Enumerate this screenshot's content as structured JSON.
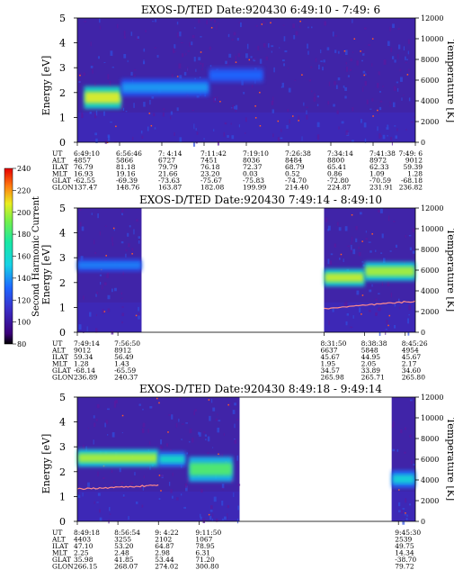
{
  "colorbar": {
    "label": "Second Harmonic Current",
    "ticks": [
      "80",
      "100",
      "120",
      "140",
      "160",
      "180",
      "200",
      "220",
      "240"
    ]
  },
  "chart_data": [
    {
      "type": "heatmap",
      "title": "EXOS-D/TED   Date:920430  6:49:10 - 7:49: 6",
      "ylabel": "Energy [eV]",
      "y2label": "Temperature [K]",
      "ylim": [
        0,
        5
      ],
      "y2lim": [
        0,
        12000
      ],
      "yticks": [
        "0",
        "1",
        "2",
        "3",
        "4",
        "5"
      ],
      "y2ticks": [
        "0",
        "2000",
        "4000",
        "6000",
        "8000",
        "10000",
        "12000"
      ],
      "row_labels": [
        "UT",
        "ALT",
        "ILAT",
        "MLT",
        "GLAT",
        "GLON"
      ],
      "columns": [
        [
          "6:49:10",
          "4857",
          "76.79",
          "16.93",
          "-62.55",
          "137.47"
        ],
        [
          "6:56:46",
          "5866",
          "81.18",
          "19.16",
          "-69.39",
          "148.76"
        ],
        [
          "7: 4:14",
          "6727",
          "79.79",
          "21.66",
          "-73.63",
          "163.87"
        ],
        [
          "7:11:42",
          "7451",
          "76.18",
          "23.20",
          "-75.67",
          "182.08"
        ],
        [
          "7:19:10",
          "8036",
          "72.37",
          "0.03",
          "-75.83",
          "199.99"
        ],
        [
          "7:26:38",
          "8484",
          "68.79",
          "0.52",
          "-74.70",
          "214.40"
        ],
        [
          "7:34:14",
          "8800",
          "65.41",
          "0.86",
          "-72.80",
          "224.87"
        ],
        [
          "7:41:38",
          "8972",
          "62.33",
          "1.09",
          "-70.59",
          "231.91"
        ],
        [
          "7:49: 6",
          "9012",
          "59.39",
          "1.28",
          "-68.18",
          "236.82"
        ]
      ],
      "data_spans": [
        [
          0,
          1
        ]
      ],
      "bands": [
        {
          "start": 0.02,
          "end": 0.13,
          "center_eV": 1.8,
          "width_eV": 0.9,
          "level": 1.0
        },
        {
          "start": 0.13,
          "end": 0.39,
          "center_eV": 2.2,
          "width_eV": 0.7,
          "level": 0.35
        },
        {
          "start": 0.39,
          "end": 0.55,
          "center_eV": 2.7,
          "width_eV": 0.6,
          "level": 0.25
        }
      ]
    },
    {
      "type": "heatmap",
      "title": "EXOS-D/TED   Date:920430  7:49:14 - 8:49:10",
      "ylabel": "Energy [eV]",
      "y2label": "Temperature [K]",
      "ylim": [
        0,
        5
      ],
      "y2lim": [
        0,
        12000
      ],
      "yticks": [
        "0",
        "1",
        "2",
        "3",
        "4",
        "5"
      ],
      "y2ticks": [
        "0",
        "2000",
        "4000",
        "6000",
        "8000",
        "10000",
        "12000"
      ],
      "row_labels": [
        "UT",
        "ALT",
        "ILAT",
        "MLT",
        "GLAT",
        "GLON"
      ],
      "columns": [
        [
          "7:49:14",
          "9012",
          "59.34",
          "1.28",
          "-68.14",
          "236.89"
        ],
        [
          "7:56:50",
          "8912",
          "56.49",
          "1.43",
          "-65.59",
          "240.37"
        ],
        [
          "8:31:50",
          "6637",
          "45.67",
          "1.95",
          "34.57",
          "265.98"
        ],
        [
          "8:38:38",
          "5848",
          "44.95",
          "2.05",
          "33.89",
          "265.71"
        ],
        [
          "8:45:26",
          "4954",
          "45.67",
          "2.17",
          "34.60",
          "265.80"
        ]
      ],
      "data_spans": [
        [
          0,
          0.19
        ],
        [
          0.73,
          1
        ]
      ],
      "bands": [
        {
          "start": 0.0,
          "end": 0.19,
          "center_eV": 2.7,
          "width_eV": 0.5,
          "level": 0.3
        },
        {
          "start": 0.73,
          "end": 0.85,
          "center_eV": 2.2,
          "width_eV": 0.7,
          "level": 0.95
        },
        {
          "start": 0.85,
          "end": 1.0,
          "center_eV": 2.45,
          "width_eV": 0.75,
          "level": 0.9
        }
      ],
      "temperature_trace": {
        "start": 0.73,
        "end": 1.0,
        "from_eV": 0.95,
        "to_eV": 1.25
      }
    },
    {
      "type": "heatmap",
      "title": "EXOS-D/TED   Date:920430  8:49:18 - 9:49:14",
      "ylabel": "Energy [eV]",
      "y2label": "Temperature [K]",
      "ylim": [
        0,
        5
      ],
      "y2lim": [
        0,
        12000
      ],
      "yticks": [
        "0",
        "1",
        "2",
        "3",
        "4",
        "5"
      ],
      "y2ticks": [
        "0",
        "2000",
        "4000",
        "6000",
        "8000",
        "10000",
        "12000"
      ],
      "row_labels": [
        "UT",
        "ALT",
        "ILAT",
        "MLT",
        "GLAT",
        "GLON"
      ],
      "columns": [
        [
          "8:49:18",
          "4403",
          "47.10",
          "2.25",
          "35.98",
          "266.15"
        ],
        [
          "8:56:54",
          "3255",
          "53.20",
          "2.48",
          "41.85",
          "268.07"
        ],
        [
          "9: 4:22",
          "2102",
          "64.87",
          "2.98",
          "53.44",
          "274.02"
        ],
        [
          "9:11:50",
          "1067",
          "78.95",
          "6.31",
          "71.20",
          "300.80"
        ],
        [
          "9:45:30",
          "2539",
          "49.75",
          "14.34",
          "-38.70",
          "79.72"
        ]
      ],
      "data_spans": [
        [
          0,
          0.48
        ],
        [
          0.93,
          1
        ]
      ],
      "bands": [
        {
          "start": 0.0,
          "end": 0.24,
          "center_eV": 2.55,
          "width_eV": 0.7,
          "level": 0.9
        },
        {
          "start": 0.24,
          "end": 0.32,
          "center_eV": 2.5,
          "width_eV": 0.6,
          "level": 0.55
        },
        {
          "start": 0.33,
          "end": 0.46,
          "center_eV": 2.1,
          "width_eV": 1.0,
          "level": 0.75
        },
        {
          "start": 0.93,
          "end": 1.0,
          "center_eV": 1.7,
          "width_eV": 0.7,
          "level": 0.5
        }
      ],
      "temperature_trace": {
        "start": 0.0,
        "end": 0.24,
        "from_eV": 1.3,
        "to_eV": 1.45
      }
    }
  ]
}
